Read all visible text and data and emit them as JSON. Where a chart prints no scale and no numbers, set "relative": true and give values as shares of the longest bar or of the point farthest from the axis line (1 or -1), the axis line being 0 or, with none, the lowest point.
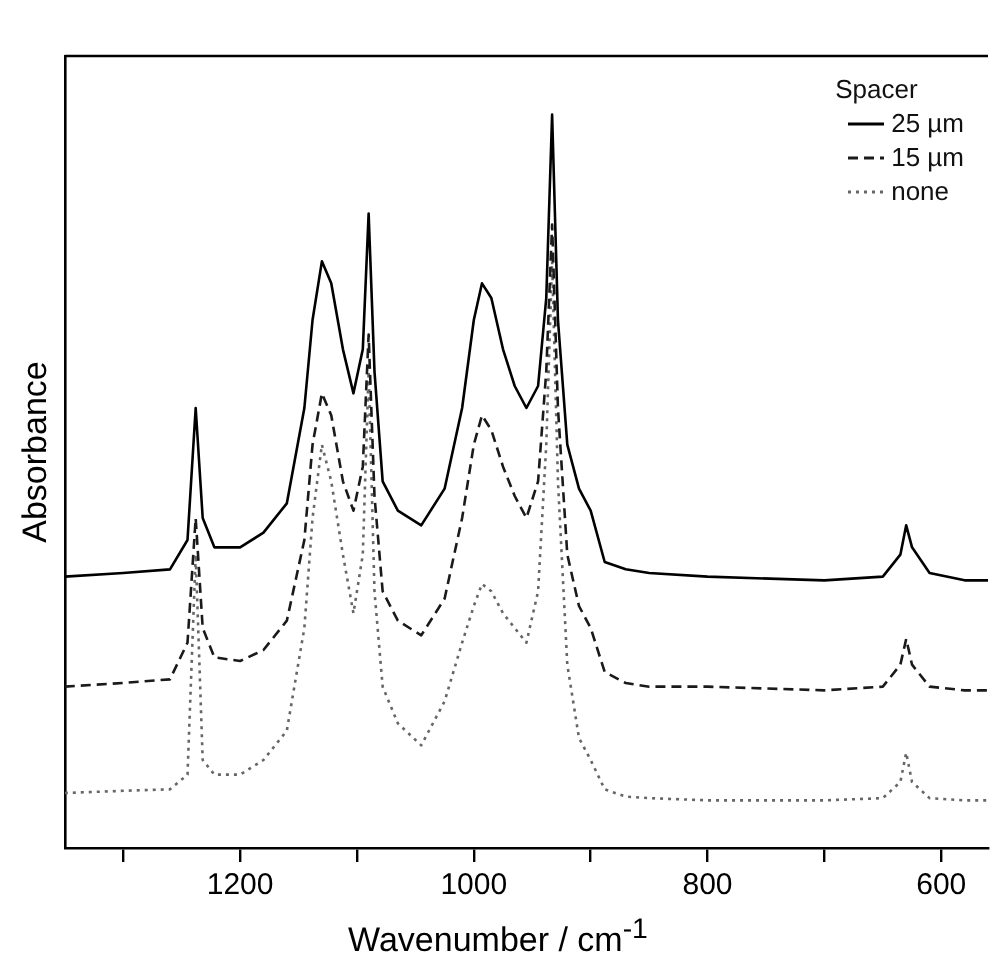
{
  "chart_data": {
    "type": "line",
    "relative": true,
    "xlabel": "Wavenumber / cm$^{-1}$",
    "ylabel": "Absorbance",
    "legend": "top right",
    "legend_title": "Spacer",
    "grid": false,
    "marker": "none",
    "tick_labels": "x",
    "xlim": [
      1350,
      560
    ],
    "xticks": [
      {
        "value": 1300,
        "label": null
      },
      1200,
      {
        "value": 1100,
        "label": null
      },
      1000,
      {
        "value": 900,
        "label": null
      },
      800,
      {
        "value": 700,
        "label": null
      },
      600
    ],
    "x": [
      1350,
      1300,
      1260,
      1245,
      1238,
      1232,
      1222,
      1200,
      1180,
      1160,
      1145,
      1138,
      1130,
      1122,
      1112,
      1103,
      1095,
      1090,
      1085,
      1078,
      1065,
      1045,
      1025,
      1010,
      1000,
      993,
      985,
      975,
      965,
      955,
      945,
      938,
      933,
      928,
      920,
      910,
      900,
      888,
      870,
      850,
      800,
      700,
      650,
      635,
      630,
      625,
      610,
      580,
      560
    ],
    "series": [
      {
        "name": "25 µm",
        "color": "#000000",
        "line_style": "solid",
        "values": [
          0.37,
          0.375,
          0.38,
          0.42,
          0.6,
          0.45,
          0.41,
          0.41,
          0.43,
          0.47,
          0.6,
          0.72,
          0.8,
          0.77,
          0.68,
          0.62,
          0.68,
          0.865,
          0.65,
          0.5,
          0.46,
          0.44,
          0.49,
          0.6,
          0.72,
          0.77,
          0.75,
          0.68,
          0.63,
          0.6,
          0.63,
          0.75,
          1.0,
          0.72,
          0.55,
          0.49,
          0.46,
          0.39,
          0.38,
          0.375,
          0.37,
          0.365,
          0.37,
          0.4,
          0.44,
          0.41,
          0.375,
          0.365,
          0.365
        ]
      },
      {
        "name": "15 µm",
        "color": "#1a1a1a",
        "line_style": "dashed",
        "values": [
          0.22,
          0.225,
          0.23,
          0.28,
          0.45,
          0.3,
          0.26,
          0.255,
          0.27,
          0.31,
          0.42,
          0.55,
          0.62,
          0.59,
          0.5,
          0.46,
          0.52,
          0.7,
          0.48,
          0.35,
          0.31,
          0.29,
          0.34,
          0.45,
          0.55,
          0.59,
          0.57,
          0.52,
          0.48,
          0.45,
          0.5,
          0.65,
          0.85,
          0.6,
          0.4,
          0.33,
          0.3,
          0.24,
          0.225,
          0.22,
          0.22,
          0.215,
          0.22,
          0.25,
          0.285,
          0.25,
          0.22,
          0.215,
          0.215
        ]
      },
      {
        "name": "none",
        "color": "#666666",
        "line_style": "dotted",
        "values": [
          0.075,
          0.078,
          0.08,
          0.1,
          0.4,
          0.12,
          0.1,
          0.1,
          0.12,
          0.16,
          0.3,
          0.45,
          0.55,
          0.5,
          0.4,
          0.32,
          0.4,
          0.65,
          0.35,
          0.22,
          0.17,
          0.14,
          0.2,
          0.28,
          0.33,
          0.36,
          0.35,
          0.32,
          0.3,
          0.28,
          0.35,
          0.55,
          0.8,
          0.5,
          0.25,
          0.15,
          0.12,
          0.08,
          0.07,
          0.068,
          0.065,
          0.065,
          0.068,
          0.09,
          0.13,
          0.09,
          0.068,
          0.065,
          0.065
        ]
      }
    ]
  }
}
